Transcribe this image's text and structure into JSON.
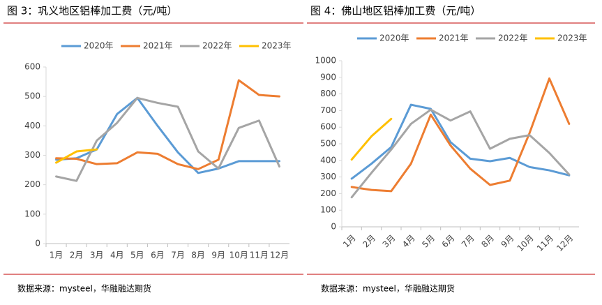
{
  "chart_data": [
    {
      "type": "line",
      "title": "图 3：巩义地区铝棒加工费（元/吨）",
      "source": "数据来源：mysteel，华融融达期货",
      "categories": [
        "1月",
        "2月",
        "3月",
        "4月",
        "5月",
        "6月",
        "7月",
        "8月",
        "9月",
        "10月",
        "11月",
        "12月"
      ],
      "ylim": [
        0,
        600
      ],
      "yticks": [
        0,
        100,
        200,
        300,
        400,
        500,
        600
      ],
      "grid": false,
      "series": [
        {
          "name": "2020年",
          "color": "#5b9bd5",
          "values": [
            285,
            290,
            320,
            440,
            495,
            400,
            310,
            240,
            255,
            280,
            280,
            280
          ]
        },
        {
          "name": "2021年",
          "color": "#ed7d31",
          "values": [
            290,
            288,
            270,
            273,
            310,
            305,
            270,
            253,
            285,
            555,
            505,
            500
          ]
        },
        {
          "name": "2022年",
          "color": "#a5a5a5",
          "values": [
            228,
            213,
            350,
            410,
            495,
            478,
            465,
            313,
            255,
            393,
            418,
            262
          ]
        },
        {
          "name": "2023年",
          "color": "#ffc000",
          "values": [
            275,
            313,
            320,
            null,
            null,
            null,
            null,
            null,
            null,
            null,
            null,
            null
          ]
        }
      ]
    },
    {
      "type": "line",
      "title": "图 4：佛山地区铝棒加工费（元/吨）",
      "source": "数据来源：mysteel，华融融达期货",
      "categories": [
        "1月",
        "2月",
        "3月",
        "4月",
        "5月",
        "6月",
        "7月",
        "8月",
        "9月",
        "10月",
        "11月",
        "12月"
      ],
      "ylim": [
        0,
        1000
      ],
      "yticks": [
        0,
        100,
        200,
        300,
        400,
        500,
        600,
        700,
        800,
        900,
        1000
      ],
      "grid": false,
      "series": [
        {
          "name": "2020年",
          "color": "#5b9bd5",
          "values": [
            290,
            380,
            480,
            735,
            710,
            510,
            410,
            395,
            415,
            360,
            340,
            310
          ]
        },
        {
          "name": "2021年",
          "color": "#ed7d31",
          "values": [
            240,
            222,
            215,
            380,
            675,
            490,
            350,
            252,
            278,
            565,
            893,
            620
          ]
        },
        {
          "name": "2022年",
          "color": "#a5a5a5",
          "values": [
            178,
            325,
            465,
            620,
            705,
            640,
            695,
            470,
            530,
            552,
            445,
            315
          ]
        },
        {
          "name": "2023年",
          "color": "#ffc000",
          "values": [
            405,
            545,
            650,
            null,
            null,
            null,
            null,
            null,
            null,
            null,
            null,
            null
          ]
        }
      ]
    }
  ]
}
